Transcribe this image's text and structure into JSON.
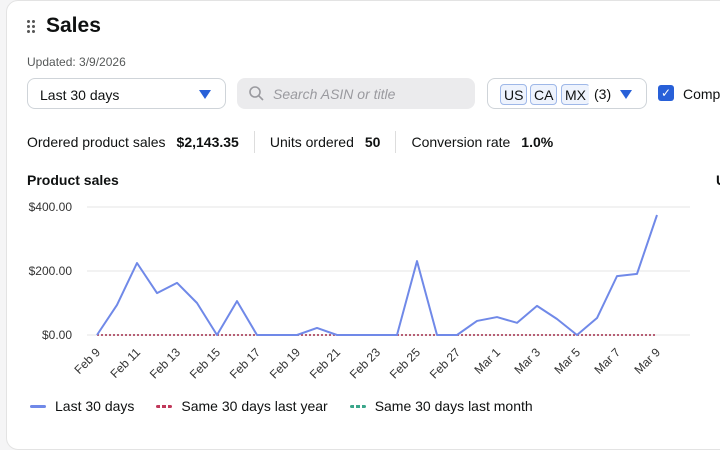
{
  "widget": {
    "title": "Sales",
    "updated": "Updated: 3/9/2026"
  },
  "filters": {
    "date_range": "Last 30 days",
    "search_placeholder": "Search ASIN or title",
    "markets": [
      "US",
      "CA",
      "MX"
    ],
    "market_count": "(3)",
    "compare_label": "Comp",
    "compare_checked": true
  },
  "metrics": [
    {
      "label": "Ordered product sales",
      "value": "$2,143.35"
    },
    {
      "label": "Units ordered",
      "value": "50"
    },
    {
      "label": "Conversion rate",
      "value": "1.0%"
    }
  ],
  "chart_title": "Product sales",
  "next_chart_title": "U",
  "colors": {
    "accent": "#2860d8",
    "last30": "#7089e8",
    "last_year": "#c0385a",
    "last_month": "#3aa68a"
  },
  "chart_data": {
    "type": "line",
    "x": [
      "Feb 9",
      "Feb 10",
      "Feb 11",
      "Feb 12",
      "Feb 13",
      "Feb 14",
      "Feb 15",
      "Feb 16",
      "Feb 17",
      "Feb 18",
      "Feb 19",
      "Feb 20",
      "Feb 21",
      "Feb 22",
      "Feb 23",
      "Feb 24",
      "Feb 25",
      "Feb 26",
      "Feb 27",
      "Feb 28",
      "Mar 1",
      "Mar 2",
      "Mar 3",
      "Mar 4",
      "Mar 5",
      "Mar 6",
      "Mar 7",
      "Mar 8",
      "Mar 9"
    ],
    "xticks": [
      "Feb 9",
      "Feb 11",
      "Feb 13",
      "Feb 15",
      "Feb 17",
      "Feb 19",
      "Feb 21",
      "Feb 23",
      "Feb 25",
      "Feb 27",
      "Mar 1",
      "Mar 3",
      "Mar 5",
      "Mar 7",
      "Mar 9"
    ],
    "yticks": [
      "$0.00",
      "$200.00",
      "$400.00"
    ],
    "ylim": [
      0,
      400
    ],
    "grid": true,
    "series": [
      {
        "name": "Last 30 days",
        "values": [
          0,
          94,
          225,
          131,
          163,
          100,
          0,
          106,
          0,
          0,
          0,
          22,
          0,
          0,
          0,
          0,
          231,
          0,
          0,
          44,
          56,
          38,
          91,
          50,
          0,
          53,
          184,
          191,
          375
        ]
      },
      {
        "name": "Same 30 days last year",
        "values": [
          0,
          0,
          0,
          0,
          0,
          0,
          0,
          0,
          0,
          0,
          0,
          0,
          0,
          0,
          0,
          0,
          0,
          0,
          0,
          0,
          0,
          0,
          0,
          0,
          0,
          0,
          0,
          0,
          0
        ]
      },
      {
        "name": "Same 30 days last month",
        "values": [
          0,
          0,
          0,
          0,
          0,
          0,
          0,
          0,
          0,
          0,
          0,
          0,
          0,
          0,
          0,
          0,
          0,
          0,
          0,
          0,
          0,
          0,
          0,
          0,
          0,
          0,
          0,
          0,
          0
        ]
      }
    ],
    "legend": "bottom-left"
  }
}
